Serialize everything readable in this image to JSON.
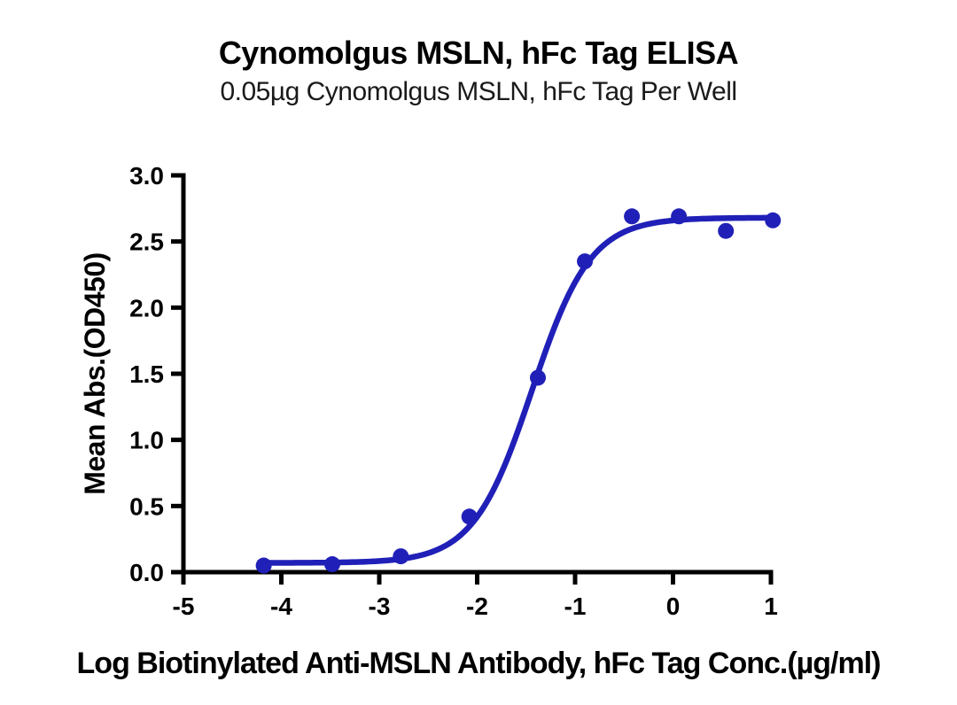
{
  "chart_data": {
    "type": "scatter",
    "title": "Cynomolgus MSLN, hFc Tag ELISA",
    "subtitle": "0.05µg Cynomolgus MSLN, hFc Tag Per Well",
    "xlabel": "Log Biotinylated Anti-MSLN Antibody, hFc Tag Conc.(µg/ml)",
    "ylabel": "Mean Abs.(OD450)",
    "xlim": [
      -5,
      1
    ],
    "ylim": [
      0,
      3
    ],
    "grid": false,
    "legend": "none",
    "x_ticks": [
      {
        "value": -5,
        "label": "-5"
      },
      {
        "value": -4,
        "label": "-4"
      },
      {
        "value": -3,
        "label": "-3"
      },
      {
        "value": -2,
        "label": "-2"
      },
      {
        "value": -1,
        "label": "-1"
      },
      {
        "value": 0,
        "label": "0"
      },
      {
        "value": 1,
        "label": "1"
      }
    ],
    "y_ticks": [
      {
        "value": 0.0,
        "label": "0.0"
      },
      {
        "value": 0.5,
        "label": "0.5"
      },
      {
        "value": 1.0,
        "label": "1.0"
      },
      {
        "value": 1.5,
        "label": "1.5"
      },
      {
        "value": 2.0,
        "label": "2.0"
      },
      {
        "value": 2.5,
        "label": "2.5"
      },
      {
        "value": 3.0,
        "label": "3.0"
      }
    ],
    "series": [
      {
        "name": "Biotinylated Anti-MSLN Antibody, hFc Tag",
        "color": "#2020b8",
        "marker": "circle",
        "points": [
          {
            "x": -4.18,
            "y": 0.05
          },
          {
            "x": -3.48,
            "y": 0.06
          },
          {
            "x": -2.78,
            "y": 0.12
          },
          {
            "x": -2.08,
            "y": 0.42
          },
          {
            "x": -1.38,
            "y": 1.47
          },
          {
            "x": -0.9,
            "y": 2.35
          },
          {
            "x": -0.42,
            "y": 2.69
          },
          {
            "x": 0.06,
            "y": 2.69
          },
          {
            "x": 0.54,
            "y": 2.58
          },
          {
            "x": 1.02,
            "y": 2.66
          }
        ],
        "fit_curve": {
          "model": "4PL",
          "bottom": 0.07,
          "top": 2.68,
          "logEC50": -1.44,
          "hillslope": 1.45,
          "x_start": -4.18,
          "x_end": 1.02
        }
      }
    ],
    "axis_color": "#000000"
  }
}
